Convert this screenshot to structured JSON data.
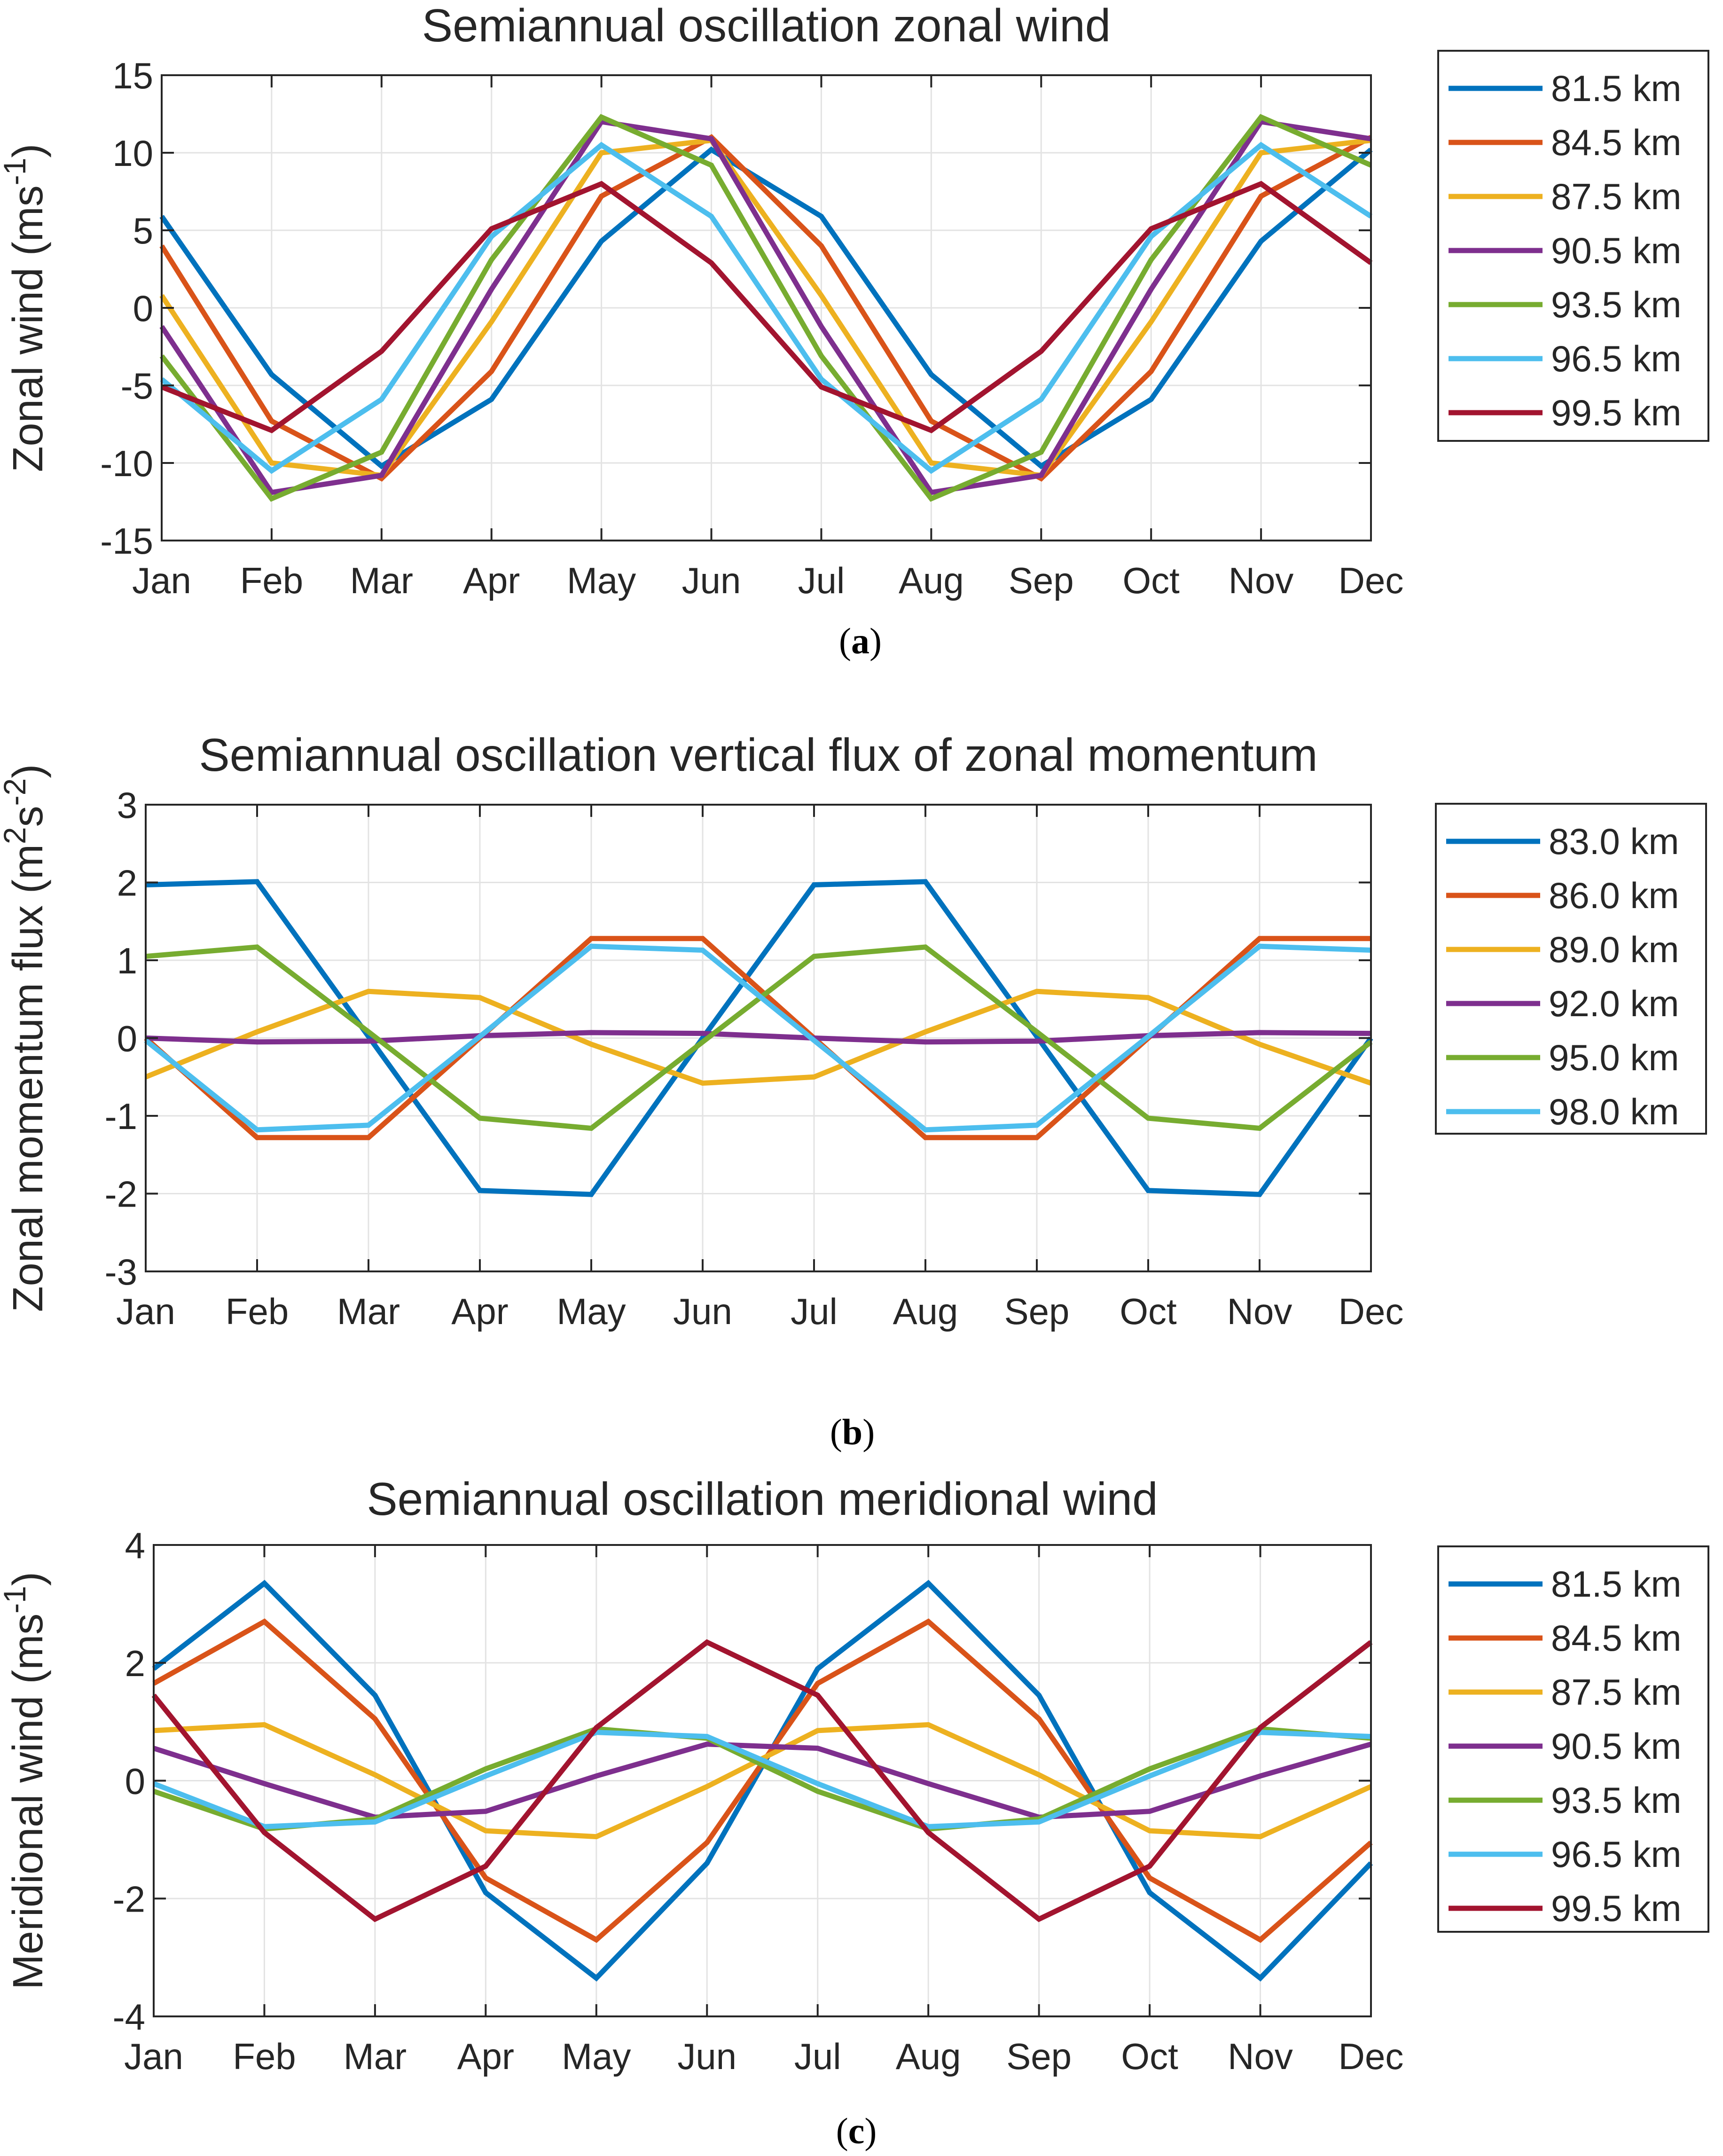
{
  "chart_data": [
    {
      "type": "line",
      "panel": "a",
      "caption_letter": "a",
      "title": "Semiannual oscillation zonal wind",
      "ylabel_main": "Zonal wind (ms",
      "ylabel_sup": "-1",
      "ylabel_end": ")",
      "xlabel": "",
      "categories": [
        "Jan",
        "Feb",
        "Mar",
        "Apr",
        "May",
        "Jun",
        "Jul",
        "Aug",
        "Sep",
        "Oct",
        "Nov",
        "Dec"
      ],
      "ylim": [
        -15,
        15
      ],
      "yticks": [
        -15,
        -10,
        -5,
        0,
        5,
        10,
        15
      ],
      "ytick_labels": [
        "-15",
        "-10",
        "-5",
        "0",
        "5",
        "10",
        "15"
      ],
      "grid": true,
      "legend_position": "outside-right",
      "series": [
        {
          "name": "81.5 km",
          "color": "#0072BD",
          "values": [
            5.9,
            -4.3,
            -10.2,
            -5.9,
            4.3,
            10.2,
            5.9,
            -4.3,
            -10.2,
            -5.9,
            4.3,
            10.2
          ]
        },
        {
          "name": "84.5 km",
          "color": "#D95319",
          "values": [
            4.0,
            -7.3,
            -11.0,
            -4.1,
            7.2,
            11.0,
            4.0,
            -7.3,
            -11.0,
            -4.1,
            7.2,
            11.0
          ]
        },
        {
          "name": "87.5 km",
          "color": "#EDB120",
          "values": [
            0.8,
            -10.0,
            -10.8,
            -0.9,
            10.0,
            10.8,
            0.8,
            -10.0,
            -10.8,
            -0.9,
            10.0,
            10.8
          ]
        },
        {
          "name": "90.5 km",
          "color": "#7E2F8E",
          "values": [
            -1.2,
            -11.9,
            -10.8,
            1.2,
            12.0,
            10.9,
            -1.2,
            -11.9,
            -10.8,
            1.2,
            12.0,
            10.9
          ]
        },
        {
          "name": "93.5 km",
          "color": "#77AC30",
          "values": [
            -3.1,
            -12.3,
            -9.3,
            3.1,
            12.3,
            9.2,
            -3.1,
            -12.3,
            -9.3,
            3.1,
            12.3,
            9.2
          ]
        },
        {
          "name": "96.5 km",
          "color": "#4DBEEE",
          "values": [
            -4.6,
            -10.5,
            -5.9,
            4.6,
            10.5,
            5.9,
            -4.6,
            -10.5,
            -5.9,
            4.6,
            10.5,
            5.9
          ]
        },
        {
          "name": "99.5 km",
          "color": "#A2142F",
          "values": [
            -5.1,
            -7.9,
            -2.8,
            5.1,
            8.0,
            2.9,
            -5.1,
            -7.9,
            -2.8,
            5.1,
            8.0,
            2.9
          ]
        }
      ]
    },
    {
      "type": "line",
      "panel": "b",
      "caption_letter": "b",
      "title": "Semiannual oscillation vertical flux of zonal momentum",
      "ylabel_main": "Zonal momentum flux (m",
      "ylabel_sup": "2",
      "ylabel_mid": "s",
      "ylabel_sup2": "-2",
      "ylabel_end": ")",
      "xlabel": "",
      "categories": [
        "Jan",
        "Feb",
        "Mar",
        "Apr",
        "May",
        "Jun",
        "Jul",
        "Aug",
        "Sep",
        "Oct",
        "Nov",
        "Dec"
      ],
      "ylim": [
        -3,
        3
      ],
      "yticks": [
        -3,
        -2,
        -1,
        0,
        1,
        2,
        3
      ],
      "ytick_labels": [
        "-3",
        "-2",
        "-1",
        "0",
        "1",
        "2",
        "3"
      ],
      "grid": true,
      "legend_position": "outside-right",
      "series": [
        {
          "name": "83.0 km",
          "color": "#0072BD",
          "values": [
            1.97,
            2.01,
            0.02,
            -1.96,
            -2.01,
            0.0,
            1.97,
            2.01,
            0.02,
            -1.96,
            -2.01,
            0.0
          ]
        },
        {
          "name": "86.0 km",
          "color": "#D95319",
          "values": [
            0.0,
            -1.28,
            -1.28,
            0.0,
            1.28,
            1.28,
            0.0,
            -1.28,
            -1.28,
            0.0,
            1.28,
            1.28
          ]
        },
        {
          "name": "89.0 km",
          "color": "#EDB120",
          "values": [
            -0.5,
            0.08,
            0.6,
            0.52,
            -0.08,
            -0.58,
            -0.5,
            0.08,
            0.6,
            0.52,
            -0.08,
            -0.58
          ]
        },
        {
          "name": "92.0 km",
          "color": "#7E2F8E",
          "values": [
            0.0,
            -0.05,
            -0.04,
            0.03,
            0.07,
            0.06,
            0.0,
            -0.05,
            -0.04,
            0.03,
            0.07,
            0.06
          ]
        },
        {
          "name": "95.0 km",
          "color": "#77AC30",
          "values": [
            1.05,
            1.17,
            0.08,
            -1.03,
            -1.16,
            -0.05,
            1.05,
            1.17,
            0.08,
            -1.03,
            -1.16,
            -0.05
          ]
        },
        {
          "name": "98.0 km",
          "color": "#4DBEEE",
          "values": [
            -0.03,
            -1.18,
            -1.12,
            0.02,
            1.18,
            1.13,
            -0.03,
            -1.18,
            -1.12,
            0.02,
            1.18,
            1.13
          ]
        }
      ]
    },
    {
      "type": "line",
      "panel": "c",
      "caption_letter": "c",
      "title": "Semiannual oscillation meridional wind",
      "ylabel_main": "Meridional wind (ms",
      "ylabel_sup": "-1",
      "ylabel_end": ")",
      "xlabel": "",
      "categories": [
        "Jan",
        "Feb",
        "Mar",
        "Apr",
        "May",
        "Jun",
        "Jul",
        "Aug",
        "Sep",
        "Oct",
        "Nov",
        "Dec"
      ],
      "ylim": [
        -4,
        4
      ],
      "yticks": [
        -4,
        -2,
        0,
        2,
        4
      ],
      "ytick_labels": [
        "-4",
        "-2",
        "0",
        "2",
        "4"
      ],
      "grid": true,
      "legend_position": "outside-right",
      "series": [
        {
          "name": "81.5 km",
          "color": "#0072BD",
          "values": [
            1.9,
            3.35,
            1.45,
            -1.9,
            -3.35,
            -1.4,
            1.9,
            3.35,
            1.45,
            -1.9,
            -3.35,
            -1.4
          ]
        },
        {
          "name": "84.5 km",
          "color": "#D95319",
          "values": [
            1.65,
            2.7,
            1.05,
            -1.65,
            -2.7,
            -1.05,
            1.65,
            2.7,
            1.05,
            -1.65,
            -2.7,
            -1.05
          ]
        },
        {
          "name": "87.5 km",
          "color": "#EDB120",
          "values": [
            0.85,
            0.95,
            0.1,
            -0.85,
            -0.95,
            -0.1,
            0.85,
            0.95,
            0.1,
            -0.85,
            -0.95,
            -0.1
          ]
        },
        {
          "name": "90.5 km",
          "color": "#7E2F8E",
          "values": [
            0.55,
            -0.05,
            -0.62,
            -0.52,
            0.08,
            0.62,
            0.55,
            -0.05,
            -0.62,
            -0.52,
            0.08,
            0.62
          ]
        },
        {
          "name": "93.5 km",
          "color": "#77AC30",
          "values": [
            -0.18,
            -0.82,
            -0.65,
            0.2,
            0.88,
            0.72,
            -0.18,
            -0.82,
            -0.65,
            0.2,
            0.88,
            0.72
          ]
        },
        {
          "name": "96.5 km",
          "color": "#4DBEEE",
          "values": [
            -0.05,
            -0.78,
            -0.7,
            0.08,
            0.82,
            0.75,
            -0.05,
            -0.78,
            -0.7,
            0.08,
            0.82,
            0.75
          ]
        },
        {
          "name": "99.5 km",
          "color": "#A2142F",
          "values": [
            1.45,
            -0.88,
            -2.35,
            -1.45,
            0.9,
            2.35,
            1.45,
            -0.88,
            -2.35,
            -1.45,
            0.9,
            2.35
          ]
        }
      ]
    }
  ]
}
